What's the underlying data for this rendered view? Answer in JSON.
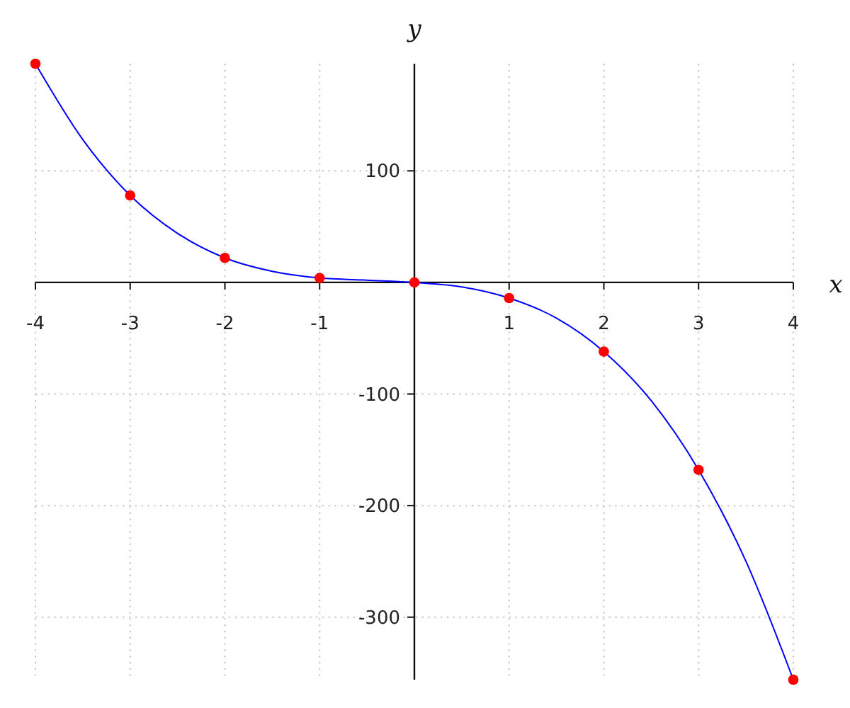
{
  "chart_data": {
    "type": "line",
    "xlabel": "x",
    "ylabel": "y",
    "xlim": [
      -4,
      4
    ],
    "ylim": [
      -356,
      196
    ],
    "xticks": [
      -4,
      -3,
      -2,
      -1,
      1,
      2,
      3,
      4
    ],
    "yticks": [
      -300,
      -200,
      -100,
      100
    ],
    "grid": true,
    "series": [
      {
        "color": "#0000ff",
        "x": [
          -4,
          -3.5,
          -3,
          -2.5,
          -2,
          -1.5,
          -1,
          -0.5,
          0,
          0.5,
          1,
          1.5,
          2,
          2.5,
          3,
          3.5,
          4
        ],
        "values": [
          196,
          128,
          78,
          44,
          22,
          10,
          4,
          2,
          0,
          -4,
          -14,
          -32,
          -62,
          -106,
          -168,
          -250,
          -356
        ]
      },
      {
        "type": "scatter",
        "color": "#ff0000",
        "marker": "circle",
        "x": [
          -4,
          -3,
          -2,
          -1,
          0,
          1,
          2,
          3,
          4
        ],
        "values": [
          196,
          78,
          22,
          4,
          0,
          -14,
          -62,
          -168,
          -356
        ]
      }
    ]
  }
}
